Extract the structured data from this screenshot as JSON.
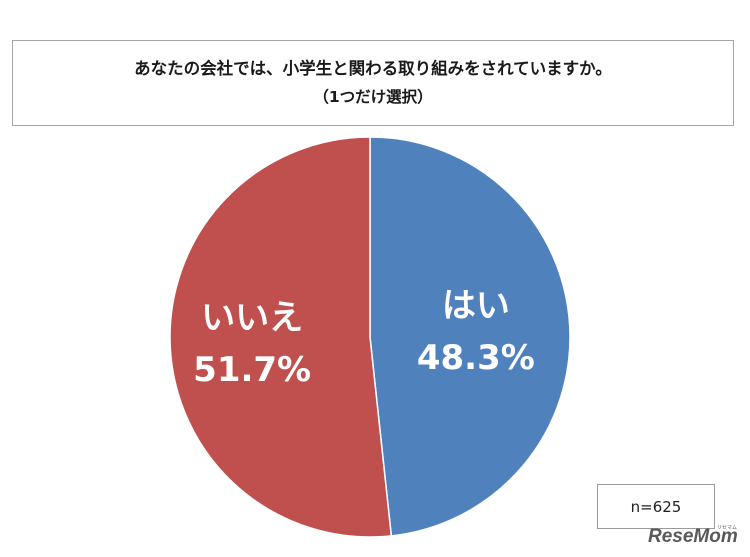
{
  "chart_data": {
    "type": "pie",
    "title": "あなたの会社では、小学生と関わる取り組みをされていますか。",
    "subtitle": "（1つだけ選択）",
    "slices": [
      {
        "label": "はい",
        "value": 48.3,
        "value_label": "48.3%",
        "color": "#4f81bd"
      },
      {
        "label": "いいえ",
        "value": 51.7,
        "value_label": "51.7%",
        "color": "#c0504d"
      }
    ],
    "start": "12 o'clock",
    "direction": "clockwise"
  },
  "sample_size": "n=625",
  "watermark": {
    "text": "ReseMom",
    "kana": "リセマム"
  }
}
